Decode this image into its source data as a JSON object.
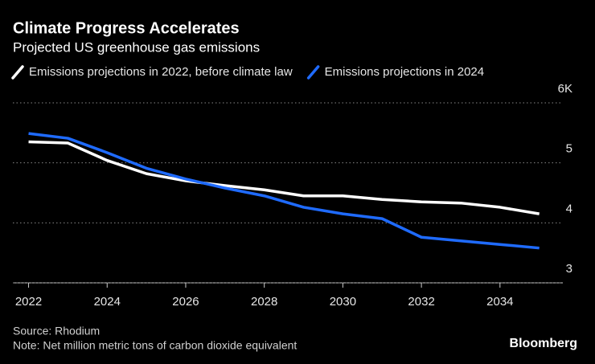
{
  "chart_data": {
    "type": "line",
    "title": "Climate Progress Accelerates",
    "subtitle": "Projected US greenhouse gas emissions",
    "source": "Source: Rhodium",
    "note": "Note: Net million metric tons of carbon dioxide equivalent",
    "brand": "Bloomberg",
    "x": [
      2022,
      2023,
      2024,
      2025,
      2026,
      2027,
      2028,
      2029,
      2030,
      2031,
      2032,
      2033,
      2034,
      2035
    ],
    "series": [
      {
        "name": "Emissions projections in 2022, before climate law",
        "color": "#ffffff",
        "values": [
          5.35,
          5.33,
          5.04,
          4.82,
          4.7,
          4.62,
          4.55,
          4.45,
          4.45,
          4.39,
          4.35,
          4.33,
          4.26,
          4.15
        ]
      },
      {
        "name": "Emissions projections in 2024",
        "color": "#1f6bff",
        "values": [
          5.49,
          5.41,
          5.17,
          4.91,
          4.73,
          4.58,
          4.45,
          4.26,
          4.15,
          4.07,
          3.76,
          3.7,
          3.64,
          3.58
        ]
      }
    ],
    "xlim": [
      2021.6,
      2035.6
    ],
    "xticks": [
      2022,
      2024,
      2026,
      2028,
      2030,
      2032,
      2034
    ],
    "ylim": [
      3,
      6
    ],
    "yticks": [
      3,
      4,
      5,
      {
        "value": 6,
        "label": "6K"
      }
    ],
    "grid": true
  }
}
